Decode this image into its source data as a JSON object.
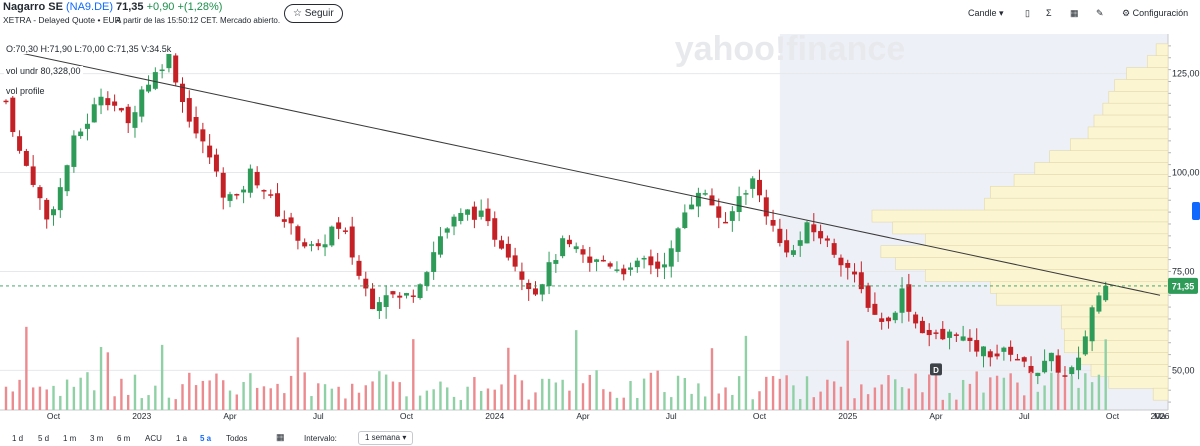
{
  "header": {
    "name": "Nagarro SE",
    "ticker": "(NA9.DE)",
    "source": "XETRA - Delayed Quote • EUR",
    "price": "71,35",
    "change": "+0,90",
    "change_pct": "+(1,28%)",
    "as_of": "A partir de las 15:50:12 CET. Mercado abierto.",
    "follow_label": "☆ Seguir"
  },
  "toolbar": {
    "chart_type": "Candle",
    "settings": "Configuración",
    "icons": [
      "compare-icon",
      "sigma-icon",
      "calendar-event-icon",
      "draw-pencil-icon",
      "gear-icon"
    ]
  },
  "legend": {
    "ohlc": "O:70,30  H:71,90  L:70,00  C:71,35  V:34.5k",
    "vol_undr": "vol undr  80,328,00",
    "vol_profile": "vol profile"
  },
  "watermark": "yahoo!finance",
  "last_price_label": "71,35",
  "event_marker": "D",
  "bottom": {
    "ranges": [
      "1 d",
      "5 d",
      "1 m",
      "3 m",
      "6 m",
      "ACU",
      "1 a",
      "5 a",
      "Todos"
    ],
    "selected_range": "5 a",
    "interval_label": "Intervalo:",
    "interval_value": "1 semana"
  },
  "colors": {
    "up": "#2e9b59",
    "down": "#c42127",
    "accent": "#0f69ff",
    "profile": "#fbf5d2"
  },
  "chart_data": {
    "type": "candlestick",
    "y_axis": {
      "ticks": [
        50,
        75,
        100,
        125
      ],
      "tick_labels": [
        "50,00",
        "75,00",
        "100,00",
        "125,00"
      ],
      "range": [
        40,
        135
      ],
      "position": "right"
    },
    "x_axis": {
      "ticks": [
        "Oct",
        "2023",
        "Apr",
        "Jul",
        "Oct",
        "2024",
        "Apr",
        "Jul",
        "Oct",
        "2025",
        "Apr",
        "Jul",
        "Oct",
        "2026",
        "Ma"
      ]
    },
    "last_price": 71.35,
    "close_path": [
      [
        0,
        118
      ],
      [
        2,
        105
      ],
      [
        4,
        98
      ],
      [
        6,
        88
      ],
      [
        8,
        96
      ],
      [
        10,
        108
      ],
      [
        12,
        113
      ],
      [
        14,
        120
      ],
      [
        16,
        117
      ],
      [
        18,
        112
      ],
      [
        20,
        121
      ],
      [
        22,
        125
      ],
      [
        24,
        130
      ],
      [
        26,
        118
      ],
      [
        28,
        110
      ],
      [
        30,
        104
      ],
      [
        32,
        95
      ],
      [
        34,
        93
      ],
      [
        36,
        100
      ],
      [
        38,
        96
      ],
      [
        40,
        90
      ],
      [
        42,
        86
      ],
      [
        44,
        82
      ],
      [
        46,
        80
      ],
      [
        48,
        86
      ],
      [
        50,
        84
      ],
      [
        52,
        74
      ],
      [
        54,
        67
      ],
      [
        56,
        70
      ],
      [
        58,
        68
      ],
      [
        60,
        70
      ],
      [
        62,
        76
      ],
      [
        64,
        84
      ],
      [
        66,
        88
      ],
      [
        68,
        90
      ],
      [
        70,
        89
      ],
      [
        72,
        84
      ],
      [
        74,
        80
      ],
      [
        76,
        74
      ],
      [
        78,
        70
      ],
      [
        80,
        76
      ],
      [
        82,
        82
      ],
      [
        84,
        80
      ],
      [
        86,
        77
      ],
      [
        88,
        78
      ],
      [
        90,
        76
      ],
      [
        92,
        75
      ],
      [
        94,
        78
      ],
      [
        96,
        76
      ],
      [
        98,
        80
      ],
      [
        100,
        90
      ],
      [
        102,
        96
      ],
      [
        104,
        92
      ],
      [
        106,
        86
      ],
      [
        108,
        94
      ],
      [
        110,
        98
      ],
      [
        112,
        90
      ],
      [
        114,
        82
      ],
      [
        116,
        80
      ],
      [
        118,
        86
      ],
      [
        120,
        84
      ],
      [
        122,
        80
      ],
      [
        124,
        76
      ],
      [
        126,
        70
      ],
      [
        128,
        64
      ],
      [
        130,
        62
      ],
      [
        132,
        70
      ],
      [
        134,
        62
      ],
      [
        136,
        59
      ],
      [
        138,
        58
      ],
      [
        140,
        60
      ],
      [
        142,
        56
      ],
      [
        144,
        55
      ],
      [
        146,
        54
      ],
      [
        148,
        55
      ],
      [
        150,
        51
      ],
      [
        152,
        50
      ],
      [
        154,
        53
      ],
      [
        156,
        48
      ],
      [
        158,
        52
      ],
      [
        160,
        66
      ],
      [
        162,
        71.35
      ]
    ],
    "volume_profile_bins": [
      {
        "price": 131,
        "width": 0.04
      },
      {
        "price": 128,
        "width": 0.07
      },
      {
        "price": 125,
        "width": 0.14
      },
      {
        "price": 122,
        "width": 0.18
      },
      {
        "price": 119,
        "width": 0.2
      },
      {
        "price": 116,
        "width": 0.22
      },
      {
        "price": 113,
        "width": 0.25
      },
      {
        "price": 110,
        "width": 0.27
      },
      {
        "price": 107,
        "width": 0.33
      },
      {
        "price": 104,
        "width": 0.4
      },
      {
        "price": 101,
        "width": 0.45
      },
      {
        "price": 98,
        "width": 0.52
      },
      {
        "price": 95,
        "width": 0.6
      },
      {
        "price": 92,
        "width": 0.62
      },
      {
        "price": 89,
        "width": 1.0
      },
      {
        "price": 86,
        "width": 0.93
      },
      {
        "price": 83,
        "width": 0.82
      },
      {
        "price": 80,
        "width": 0.97
      },
      {
        "price": 77,
        "width": 0.92
      },
      {
        "price": 74,
        "width": 0.82
      },
      {
        "price": 71,
        "width": 0.6
      },
      {
        "price": 68,
        "width": 0.58
      },
      {
        "price": 65,
        "width": 0.36
      },
      {
        "price": 62,
        "width": 0.36
      },
      {
        "price": 59,
        "width": 0.35
      },
      {
        "price": 56,
        "width": 0.35
      },
      {
        "price": 53,
        "width": 0.3
      },
      {
        "price": 50,
        "width": 0.26
      },
      {
        "price": 47,
        "width": 0.2
      },
      {
        "price": 44,
        "width": 0.05
      }
    ],
    "trendline": {
      "from": {
        "week": 0,
        "price": 131
      },
      "to": {
        "week": 170,
        "price": 69
      }
    },
    "legend_position": "top-left",
    "grid": true
  }
}
